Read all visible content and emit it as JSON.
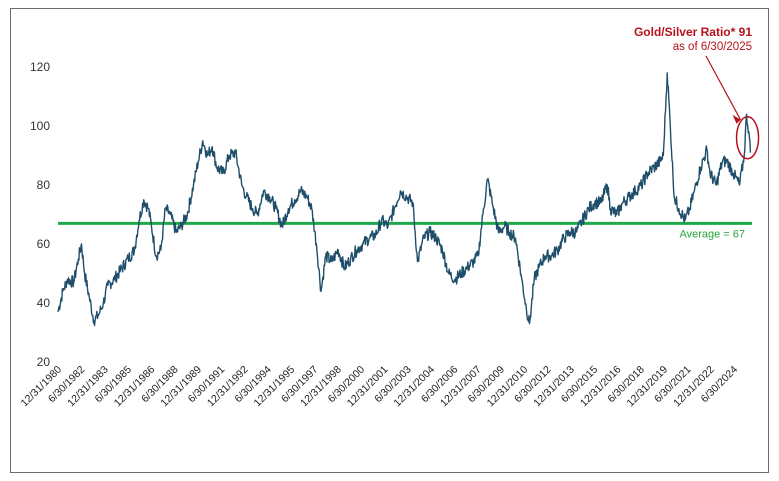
{
  "chart_data": {
    "type": "line",
    "title": "",
    "xlabel": "",
    "ylabel": "",
    "ylim": [
      20,
      125
    ],
    "yticks": [
      20,
      40,
      60,
      80,
      100,
      120
    ],
    "grid": false,
    "x_tick_labels": [
      "12/31/1980",
      "6/30/1982",
      "12/31/1983",
      "6/30/1985",
      "12/31/1986",
      "6/30/1988",
      "12/31/1989",
      "6/30/1991",
      "12/31/1992",
      "6/30/1994",
      "12/31/1995",
      "6/30/1997",
      "12/31/1998",
      "6/30/2000",
      "12/31/2001",
      "6/30/2003",
      "12/31/2004",
      "6/30/2006",
      "12/31/2007",
      "6/30/2009",
      "12/31/2010",
      "6/30/2012",
      "12/31/2013",
      "6/30/2015",
      "12/31/2016",
      "6/30/2018",
      "12/31/2019",
      "6/30/2021",
      "12/31/2022",
      "6/30/2024"
    ],
    "series": [
      {
        "color": "#1f4e6b",
        "points": [
          [
            1980.99,
            37
          ],
          [
            1981.3,
            44
          ],
          [
            1981.6,
            48
          ],
          [
            1982.0,
            47
          ],
          [
            1982.3,
            55
          ],
          [
            1982.5,
            60
          ],
          [
            1982.7,
            50
          ],
          [
            1983.0,
            42
          ],
          [
            1983.3,
            34
          ],
          [
            1983.6,
            36
          ],
          [
            1983.9,
            40
          ],
          [
            1984.2,
            46
          ],
          [
            1984.6,
            48
          ],
          [
            1985.0,
            51
          ],
          [
            1985.5,
            55
          ],
          [
            1985.9,
            58
          ],
          [
            1986.2,
            68
          ],
          [
            1986.5,
            75
          ],
          [
            1986.8,
            72
          ],
          [
            1987.0,
            66
          ],
          [
            1987.3,
            56
          ],
          [
            1987.6,
            58
          ],
          [
            1987.9,
            72
          ],
          [
            1988.2,
            70
          ],
          [
            1988.6,
            64
          ],
          [
            1988.9,
            66
          ],
          [
            1989.3,
            70
          ],
          [
            1989.7,
            80
          ],
          [
            1990.0,
            88
          ],
          [
            1990.3,
            95
          ],
          [
            1990.6,
            90
          ],
          [
            1990.9,
            93
          ],
          [
            1991.2,
            86
          ],
          [
            1991.6,
            84
          ],
          [
            1992.0,
            90
          ],
          [
            1992.4,
            91
          ],
          [
            1992.8,
            80
          ],
          [
            1993.1,
            76
          ],
          [
            1993.5,
            72
          ],
          [
            1993.8,
            70
          ],
          [
            1994.2,
            78
          ],
          [
            1994.6,
            76
          ],
          [
            1995.0,
            72
          ],
          [
            1995.4,
            66
          ],
          [
            1995.8,
            72
          ],
          [
            1996.2,
            75
          ],
          [
            1996.6,
            78
          ],
          [
            1997.0,
            76
          ],
          [
            1997.3,
            72
          ],
          [
            1997.6,
            60
          ],
          [
            1997.9,
            44
          ],
          [
            1998.2,
            56
          ],
          [
            1998.6,
            54
          ],
          [
            1999.0,
            58
          ],
          [
            1999.4,
            52
          ],
          [
            1999.8,
            55
          ],
          [
            2000.2,
            58
          ],
          [
            2000.6,
            60
          ],
          [
            2001.0,
            62
          ],
          [
            2001.4,
            63
          ],
          [
            2001.8,
            68
          ],
          [
            2002.2,
            66
          ],
          [
            2002.6,
            72
          ],
          [
            2003.0,
            78
          ],
          [
            2003.4,
            76
          ],
          [
            2003.8,
            74
          ],
          [
            2004.1,
            54
          ],
          [
            2004.5,
            62
          ],
          [
            2004.9,
            64
          ],
          [
            2005.3,
            62
          ],
          [
            2005.7,
            58
          ],
          [
            2006.1,
            50
          ],
          [
            2006.5,
            48
          ],
          [
            2006.9,
            50
          ],
          [
            2007.3,
            52
          ],
          [
            2007.7,
            54
          ],
          [
            2008.0,
            56
          ],
          [
            2008.3,
            70
          ],
          [
            2008.6,
            82
          ],
          [
            2008.9,
            74
          ],
          [
            2009.3,
            64
          ],
          [
            2009.7,
            66
          ],
          [
            2010.0,
            64
          ],
          [
            2010.4,
            62
          ],
          [
            2010.8,
            48
          ],
          [
            2011.1,
            38
          ],
          [
            2011.3,
            33
          ],
          [
            2011.6,
            48
          ],
          [
            2011.9,
            52
          ],
          [
            2012.3,
            56
          ],
          [
            2012.7,
            56
          ],
          [
            2013.1,
            58
          ],
          [
            2013.5,
            62
          ],
          [
            2013.9,
            64
          ],
          [
            2014.3,
            64
          ],
          [
            2014.7,
            68
          ],
          [
            2015.1,
            72
          ],
          [
            2015.5,
            74
          ],
          [
            2015.9,
            74
          ],
          [
            2016.3,
            80
          ],
          [
            2016.5,
            72
          ],
          [
            2016.9,
            70
          ],
          [
            2017.3,
            74
          ],
          [
            2017.7,
            76
          ],
          [
            2018.1,
            78
          ],
          [
            2018.5,
            80
          ],
          [
            2018.9,
            84
          ],
          [
            2019.3,
            86
          ],
          [
            2019.7,
            88
          ],
          [
            2019.9,
            90
          ],
          [
            2020.15,
            118
          ],
          [
            2020.35,
            100
          ],
          [
            2020.6,
            76
          ],
          [
            2020.9,
            72
          ],
          [
            2021.3,
            68
          ],
          [
            2021.6,
            72
          ],
          [
            2021.9,
            78
          ],
          [
            2022.3,
            86
          ],
          [
            2022.7,
            92
          ],
          [
            2022.9,
            84
          ],
          [
            2023.3,
            80
          ],
          [
            2023.7,
            88
          ],
          [
            2024.0,
            88
          ],
          [
            2024.4,
            84
          ],
          [
            2024.8,
            80
          ],
          [
            2025.1,
            90
          ],
          [
            2025.25,
            104
          ],
          [
            2025.4,
            98
          ],
          [
            2025.5,
            91
          ]
        ]
      }
    ],
    "reference_line": {
      "value": 67,
      "label": "Average = 67",
      "color": "#1ea84a"
    },
    "annotation": {
      "title": "Gold/Silver Ratio* 91",
      "subtitle": "as of 6/30/2025",
      "color": "#b5121b"
    }
  }
}
